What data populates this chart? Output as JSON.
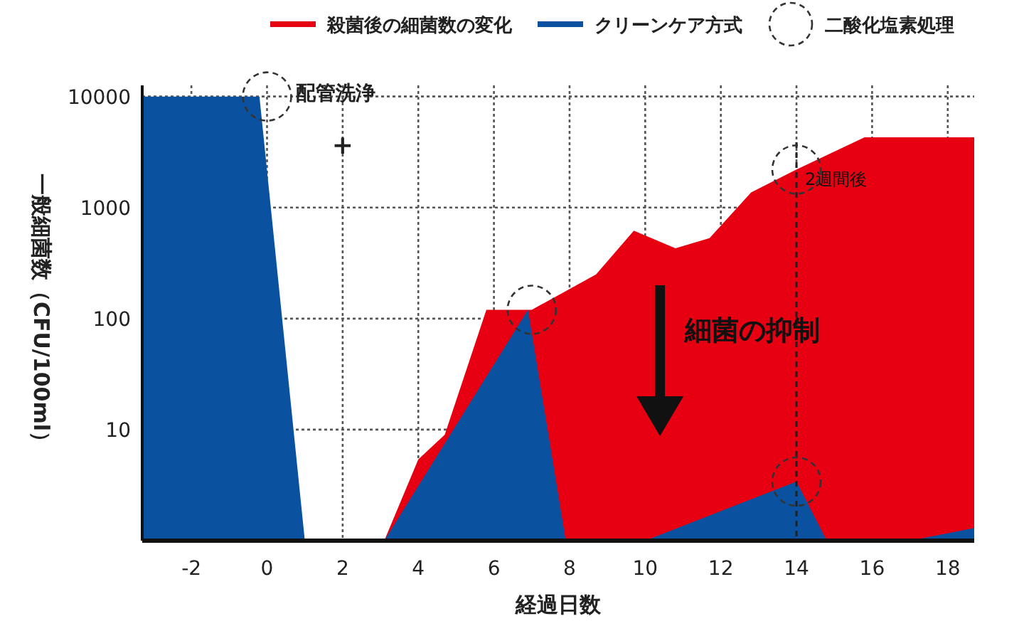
{
  "chart_data": {
    "type": "area",
    "xlabel": "経過日数",
    "ylabel": "一般細菌数（CFU/100ml）",
    "log": "y",
    "xlim": [
      -3.3,
      18.7
    ],
    "ylim": [
      1,
      12600
    ],
    "xticks": [
      -2,
      0,
      2,
      4,
      6,
      8,
      10,
      12,
      14,
      16,
      18
    ],
    "yticks": [
      10,
      100,
      1000,
      10000
    ],
    "grid": true,
    "legend": "top",
    "series": [
      {
        "name": "殺菌後の細菌数の変化",
        "color": "#e60012",
        "x": [
          3.1,
          4,
          4.7,
          5.8,
          7,
          8.7,
          9.7,
          10.8,
          11.7,
          12.8,
          14,
          15.8,
          18.7
        ],
        "values": [
          1,
          5.4,
          9,
          120,
          120,
          250,
          620,
          430,
          530,
          1370,
          2200,
          4300,
          4300
        ]
      },
      {
        "name": "クリーンケア方式",
        "color": "#0a52a0",
        "x": [
          -3.3,
          -0.2,
          1,
          3.1,
          6.9,
          7.9,
          10,
          14,
          14.8,
          17,
          18.7
        ],
        "values": [
          10000,
          10000,
          1,
          1,
          120,
          1,
          1,
          3.4,
          1,
          1,
          1.3
        ]
      },
      {
        "name": "二酸化塩素処理",
        "color": "#333333",
        "type": "scatter",
        "marker": "circle",
        "line_style": "dashed",
        "x": [
          0,
          7,
          14,
          14
        ],
        "values": [
          10000,
          120,
          2200,
          3.4
        ]
      }
    ],
    "ref_lines": [
      {
        "axis": "x",
        "value": 14,
        "label": "2週間後",
        "line_style": "dashed",
        "color": "#222222"
      }
    ],
    "annotations": [
      {
        "text": "配管洗浄",
        "x": 0,
        "y": 10000
      },
      "+",
      "細菌の抑制"
    ]
  }
}
